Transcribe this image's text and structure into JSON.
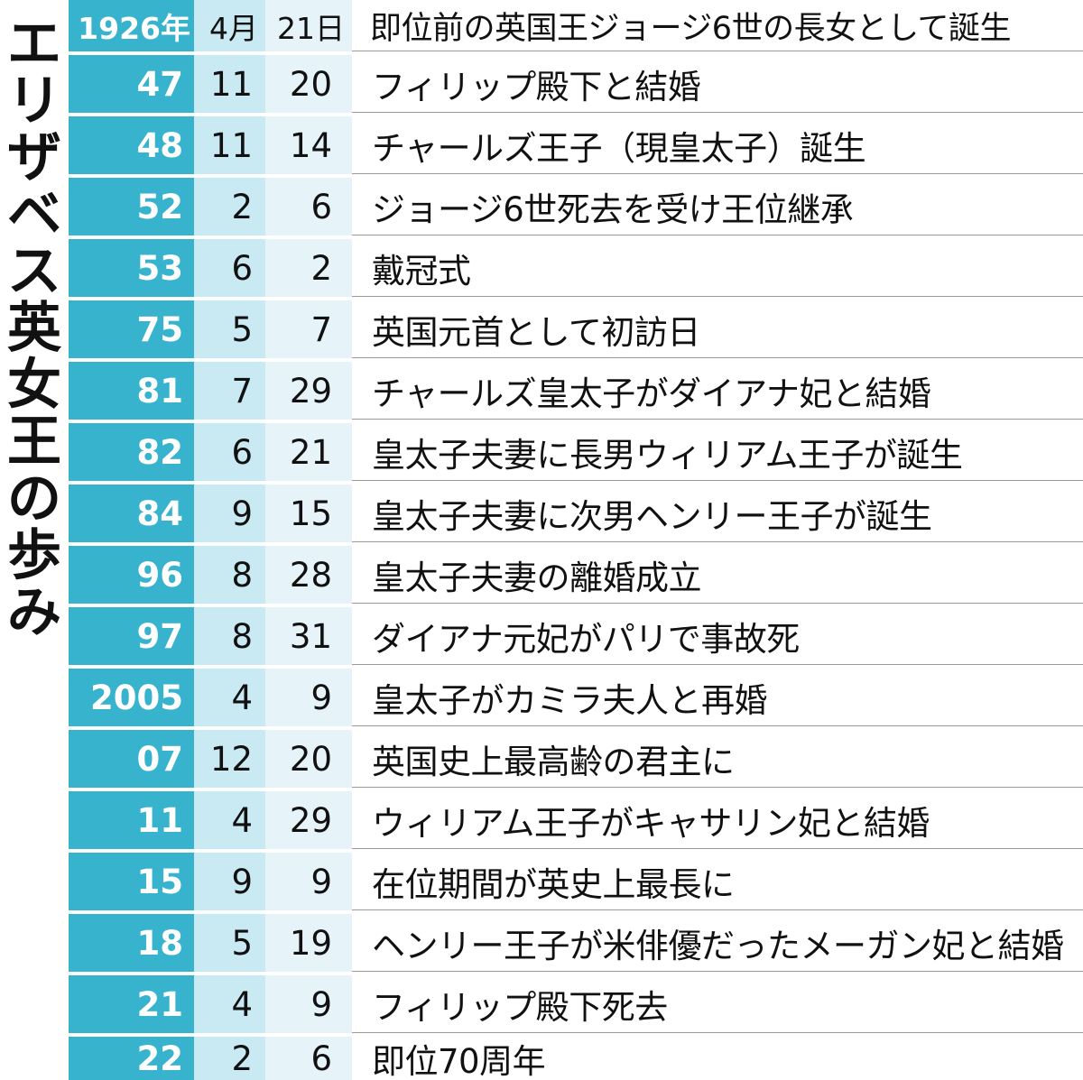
{
  "title": "エリザベス英女王の歩み",
  "title_chars": [
    "エ",
    "リ",
    "ザ",
    "ベ",
    "ス",
    "英",
    "女",
    "王",
    "の",
    "歩",
    "み"
  ],
  "colors": {
    "year_bg": "#38b3ce",
    "month_bg": "#c9e9f3",
    "day_bg": "#e6f4f9",
    "event_bg": "#ffffff"
  },
  "rows": [
    {
      "year": "1926年",
      "month": "4月",
      "day": "21日",
      "event": "即位前の英国王ジョージ6世の長女として誕生"
    },
    {
      "year": "47",
      "month": "11",
      "day": "20",
      "event": "フィリップ殿下と結婚"
    },
    {
      "year": "48",
      "month": "11",
      "day": "14",
      "event": "チャールズ王子（現皇太子）誕生"
    },
    {
      "year": "52",
      "month": "2",
      "day": "6",
      "event": "ジョージ6世死去を受け王位継承"
    },
    {
      "year": "53",
      "month": "6",
      "day": "2",
      "event": "戴冠式"
    },
    {
      "year": "75",
      "month": "5",
      "day": "7",
      "event": "英国元首として初訪日"
    },
    {
      "year": "81",
      "month": "7",
      "day": "29",
      "event": "チャールズ皇太子がダイアナ妃と結婚"
    },
    {
      "year": "82",
      "month": "6",
      "day": "21",
      "event": "皇太子夫妻に長男ウィリアム王子が誕生"
    },
    {
      "year": "84",
      "month": "9",
      "day": "15",
      "event": "皇太子夫妻に次男ヘンリー王子が誕生"
    },
    {
      "year": "96",
      "month": "8",
      "day": "28",
      "event": "皇太子夫妻の離婚成立"
    },
    {
      "year": "97",
      "month": "8",
      "day": "31",
      "event": "ダイアナ元妃がパリで事故死"
    },
    {
      "year": "2005",
      "month": "4",
      "day": "9",
      "event": "皇太子がカミラ夫人と再婚"
    },
    {
      "year": "07",
      "month": "12",
      "day": "20",
      "event": "英国史上最高齢の君主に"
    },
    {
      "year": "11",
      "month": "4",
      "day": "29",
      "event": "ウィリアム王子がキャサリン妃と結婚"
    },
    {
      "year": "15",
      "month": "9",
      "day": "9",
      "event": "在位期間が英史上最長に"
    },
    {
      "year": "18",
      "month": "5",
      "day": "19",
      "event": "ヘンリー王子が米俳優だったメーガン妃と結婚"
    },
    {
      "year": "21",
      "month": "4",
      "day": "9",
      "event": "フィリップ殿下死去"
    },
    {
      "year": "22",
      "month": "2",
      "day": "6",
      "event": "即位70周年"
    }
  ]
}
